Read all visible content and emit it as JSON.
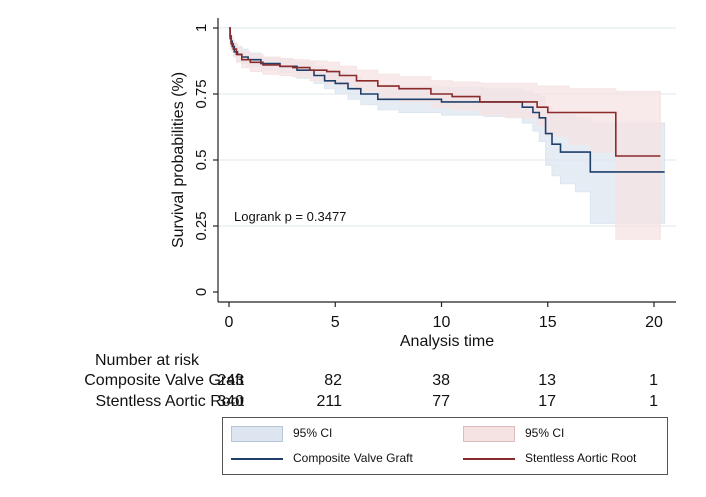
{
  "chart_data": {
    "type": "line",
    "subtype": "kaplan-meier",
    "xlabel": "Analysis time",
    "ylabel": "Survival probabilities (%)",
    "xlim": [
      0,
      21
    ],
    "ylim": [
      0,
      1
    ],
    "xticks": [
      "0",
      "5",
      "10",
      "15",
      "20"
    ],
    "yticks": [
      "0",
      "0.25",
      "0.5",
      "0.75",
      "1"
    ],
    "grid": true,
    "annotation": "Logrank p = 0.3477",
    "series": [
      {
        "name": "Composite Valve Graft",
        "color": "#1f3f6b",
        "band_color": "#dde6f0",
        "x": [
          0,
          0.05,
          0.1,
          0.15,
          0.25,
          0.4,
          0.6,
          0.9,
          1.5,
          2.4,
          3.2,
          4.0,
          4.5,
          5.0,
          5.6,
          6.2,
          7.0,
          8.0,
          10.0,
          12.0,
          13.8,
          14.3,
          14.6,
          14.9,
          15.2,
          15.6,
          16.3,
          17.0,
          18.0,
          19.5,
          20.5
        ],
        "y": [
          1.0,
          0.97,
          0.95,
          0.93,
          0.91,
          0.9,
          0.89,
          0.88,
          0.865,
          0.855,
          0.84,
          0.82,
          0.8,
          0.79,
          0.77,
          0.75,
          0.73,
          0.73,
          0.72,
          0.72,
          0.7,
          0.68,
          0.66,
          0.6,
          0.56,
          0.53,
          0.53,
          0.455,
          0.455,
          0.455,
          0.455
        ],
        "ci_upper": [
          1.0,
          0.985,
          0.97,
          0.955,
          0.94,
          0.93,
          0.92,
          0.905,
          0.89,
          0.88,
          0.87,
          0.855,
          0.84,
          0.83,
          0.815,
          0.8,
          0.785,
          0.78,
          0.775,
          0.77,
          0.76,
          0.75,
          0.74,
          0.7,
          0.68,
          0.67,
          0.66,
          0.64,
          0.64,
          0.64,
          0.64
        ],
        "ci_lower": [
          1.0,
          0.95,
          0.93,
          0.91,
          0.89,
          0.875,
          0.865,
          0.855,
          0.84,
          0.83,
          0.81,
          0.79,
          0.77,
          0.75,
          0.73,
          0.71,
          0.69,
          0.68,
          0.67,
          0.665,
          0.64,
          0.61,
          0.57,
          0.48,
          0.44,
          0.41,
          0.38,
          0.26,
          0.26,
          0.26,
          0.26
        ]
      },
      {
        "name": "Stentless Aortic Root",
        "color": "#8b2a2a",
        "band_color": "#f5e3e3",
        "x": [
          0,
          0.05,
          0.1,
          0.2,
          0.35,
          0.6,
          1.0,
          1.6,
          2.4,
          3.0,
          3.8,
          4.6,
          5.2,
          6.0,
          7.0,
          8.0,
          9.5,
          10.5,
          11.8,
          13.0,
          14.5,
          15.0,
          16.0,
          17.0,
          18.2,
          19.5,
          20.3
        ],
        "y": [
          1.0,
          0.96,
          0.94,
          0.92,
          0.9,
          0.88,
          0.87,
          0.86,
          0.855,
          0.85,
          0.84,
          0.835,
          0.82,
          0.8,
          0.78,
          0.77,
          0.75,
          0.74,
          0.72,
          0.72,
          0.7,
          0.68,
          0.68,
          0.68,
          0.515,
          0.515,
          0.515
        ],
        "ci_upper": [
          1.0,
          0.98,
          0.965,
          0.945,
          0.93,
          0.91,
          0.9,
          0.89,
          0.885,
          0.88,
          0.875,
          0.87,
          0.855,
          0.84,
          0.825,
          0.815,
          0.8,
          0.795,
          0.79,
          0.79,
          0.78,
          0.78,
          0.77,
          0.77,
          0.76,
          0.76,
          0.76
        ],
        "ci_lower": [
          1.0,
          0.94,
          0.915,
          0.895,
          0.87,
          0.85,
          0.835,
          0.825,
          0.82,
          0.815,
          0.8,
          0.79,
          0.78,
          0.76,
          0.73,
          0.72,
          0.7,
          0.69,
          0.67,
          0.66,
          0.63,
          0.59,
          0.56,
          0.53,
          0.2,
          0.2,
          0.2
        ]
      }
    ]
  },
  "risk_table": {
    "title": "Number at risk",
    "rows": [
      {
        "label": "Composite Valve Graft",
        "values": [
          "243",
          "82",
          "38",
          "13",
          "1"
        ]
      },
      {
        "label": "Stentless Aortic Root",
        "values": [
          "340",
          "211",
          "77",
          "17",
          "1"
        ]
      }
    ]
  },
  "legend": {
    "ci_label_1": "95% CI",
    "ci_label_2": "95% CI",
    "series_label_1": "Composite Valve Graft",
    "series_label_2": "Stentless Aortic Root"
  }
}
